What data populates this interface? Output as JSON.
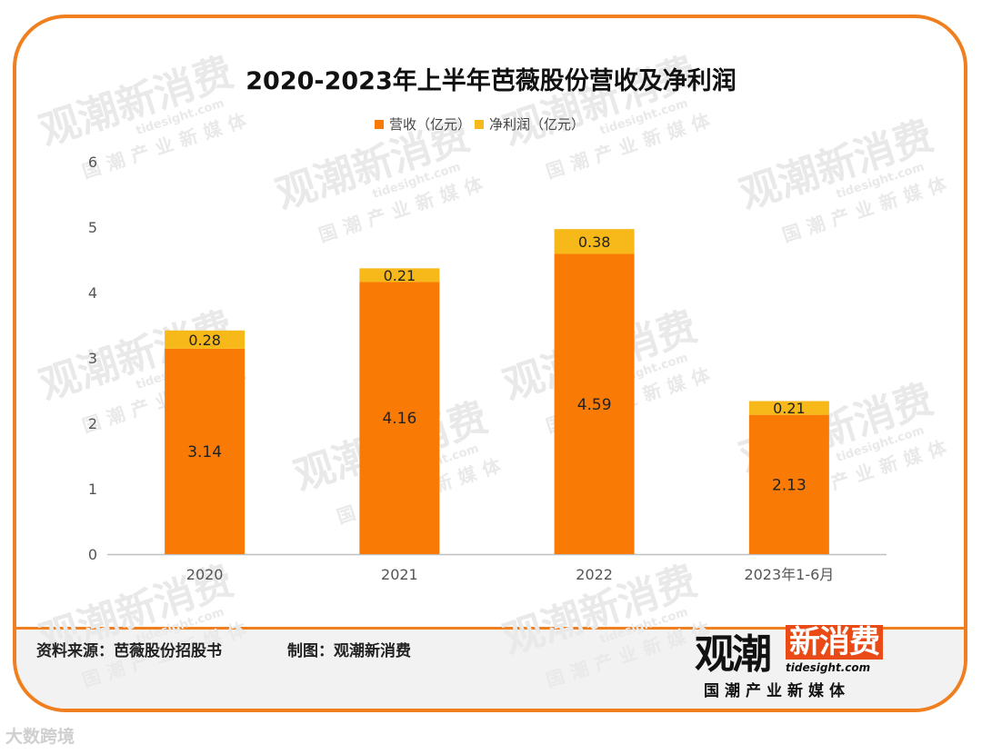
{
  "footer": {
    "source": "资料来源：芭薇股份招股书",
    "maker": "制图：观潮新消费",
    "brand_mark": "观潮",
    "brand_mark_box": "新消费",
    "brand_url": "tidesight.com",
    "brand_tagline": "国潮产业新媒体"
  },
  "corner_watermark": "大数跨境",
  "colors": {
    "revenue": "#f97b06",
    "profit": "#f7b81a",
    "frame": "#f07f1f"
  },
  "chart_data": {
    "type": "bar",
    "stacked": true,
    "title": "2020-2023年上半年芭薇股份营收及净利润",
    "categories": [
      "2020",
      "2021",
      "2022",
      "2023年1-6月"
    ],
    "series": [
      {
        "name": "营收（亿元）",
        "values": [
          3.14,
          4.16,
          4.59,
          2.13
        ]
      },
      {
        "name": "净利润（亿元）",
        "values": [
          0.28,
          0.21,
          0.38,
          0.21
        ]
      }
    ],
    "ylim": [
      0,
      6
    ],
    "yticks": [
      0,
      1,
      2,
      3,
      4,
      5,
      6
    ],
    "grid": false,
    "legend": "top-center"
  }
}
